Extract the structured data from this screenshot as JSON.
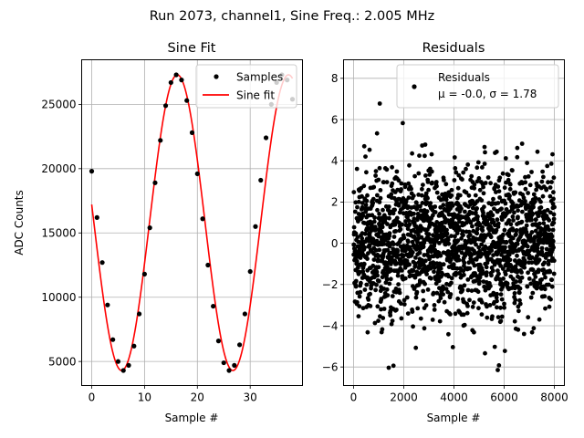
{
  "figure": {
    "suptitle": "Run 2073, channel1, Sine Freq.: 2.005 MHz"
  },
  "chart_data": [
    {
      "type": "line",
      "title": "Sine Fit",
      "xlabel": "Sample #",
      "ylabel": "ADC Counts",
      "xlim": [
        -1.9,
        39.9
      ],
      "ylim": [
        3130,
        28470
      ],
      "grid": true,
      "xticks": [
        0,
        10,
        20,
        30
      ],
      "xtick_labels": [
        "0",
        "10",
        "20",
        "30"
      ],
      "yticks": [
        5000,
        10000,
        15000,
        20000,
        25000
      ],
      "ytick_labels": [
        "5000",
        "10000",
        "15000",
        "20000",
        "25000"
      ],
      "legend": {
        "placement": "top-right",
        "entries": [
          "Samples",
          "Sine fit"
        ]
      },
      "fit": {
        "amplitude": 11500,
        "offset": 15800,
        "period": 21.05,
        "peak_at": 16.2
      },
      "series": [
        {
          "name": "Samples",
          "style": "markers",
          "color": "#000000",
          "x": [
            0,
            1,
            2,
            3,
            4,
            5,
            6,
            7,
            8,
            9,
            10,
            11,
            12,
            13,
            14,
            15,
            16,
            17,
            18,
            19,
            20,
            21,
            22,
            23,
            24,
            25,
            26,
            27,
            28,
            29,
            30,
            31,
            32,
            33,
            34,
            35,
            36,
            37,
            38
          ],
          "y": [
            19800,
            16200,
            12700,
            9400,
            6700,
            5000,
            4300,
            4700,
            6200,
            8700,
            11800,
            15400,
            18900,
            22200,
            24900,
            26700,
            27300,
            26900,
            25300,
            22800,
            19600,
            16100,
            12500,
            9300,
            6600,
            4900,
            4300,
            4700,
            6300,
            8700,
            12000,
            15500,
            19100,
            22400,
            25000,
            26700,
            27300,
            26900,
            25400
          ]
        },
        {
          "name": "Sine fit",
          "style": "line",
          "color": "#ff0000",
          "x_range": [
            0,
            38
          ]
        }
      ]
    },
    {
      "type": "scatter",
      "title": "Residuals",
      "xlabel": "Sample #",
      "ylabel": "",
      "xlim": [
        -400,
        8400
      ],
      "ylim": [
        -6.9,
        8.9
      ],
      "grid": true,
      "xticks": [
        0,
        2000,
        4000,
        6000,
        8000
      ],
      "xtick_labels": [
        "0",
        "2000",
        "4000",
        "6000",
        "8000"
      ],
      "yticks": [
        -6,
        -4,
        -2,
        0,
        2,
        4,
        6,
        8
      ],
      "ytick_labels": [
        "−6",
        "−4",
        "−2",
        "0",
        "2",
        "4",
        "6",
        "8"
      ],
      "legend": {
        "placement": "top-right",
        "entries": [
          "Residuals",
          "μ = -0.0, σ = 1.78"
        ]
      },
      "series": [
        {
          "name": "Residuals",
          "color": "#000000",
          "n_points": 8000,
          "mean": 0.0,
          "sigma": 1.78,
          "x_range": [
            0,
            8000
          ],
          "y_range": [
            -6.4,
            8.1
          ]
        }
      ]
    }
  ]
}
